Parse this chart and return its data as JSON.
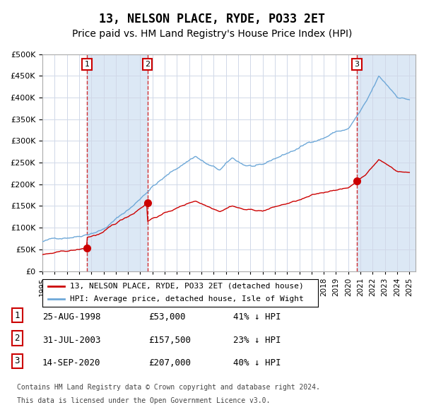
{
  "title": "13, NELSON PLACE, RYDE, PO33 2ET",
  "subtitle": "Price paid vs. HM Land Registry's House Price Index (HPI)",
  "legend_line1": "13, NELSON PLACE, RYDE, PO33 2ET (detached house)",
  "legend_line2": "HPI: Average price, detached house, Isle of Wight",
  "table": [
    {
      "num": 1,
      "date": "25-AUG-1998",
      "price": "£53,000",
      "hpi": "41% ↓ HPI"
    },
    {
      "num": 2,
      "date": "31-JUL-2003",
      "price": "£157,500",
      "hpi": "23% ↓ HPI"
    },
    {
      "num": 3,
      "date": "14-SEP-2020",
      "price": "£207,000",
      "hpi": "40% ↓ HPI"
    }
  ],
  "footnote1": "Contains HM Land Registry data © Crown copyright and database right 2024.",
  "footnote2": "This data is licensed under the Open Government Licence v3.0.",
  "sales": [
    {
      "date_float": 1998.65,
      "price": 53000
    },
    {
      "date_float": 2003.58,
      "price": 157500
    },
    {
      "date_float": 2020.71,
      "price": 207000
    }
  ],
  "sale_labels": [
    1,
    2,
    3
  ],
  "vline_x": [
    1998.65,
    2003.58,
    2020.71
  ],
  "xmin": 1995.0,
  "xmax": 2025.5,
  "ymin": 0,
  "ymax": 500000,
  "yticks": [
    0,
    50000,
    100000,
    150000,
    200000,
    250000,
    300000,
    350000,
    400000,
    450000,
    500000
  ],
  "hpi_color": "#6ea8d8",
  "price_color": "#cc0000",
  "grid_color": "#d0d8e8",
  "bg_color": "#dce8f5",
  "plot_bg": "#ffffff",
  "shade_color": "#dce8f5",
  "title_fontsize": 12,
  "subtitle_fontsize": 10
}
